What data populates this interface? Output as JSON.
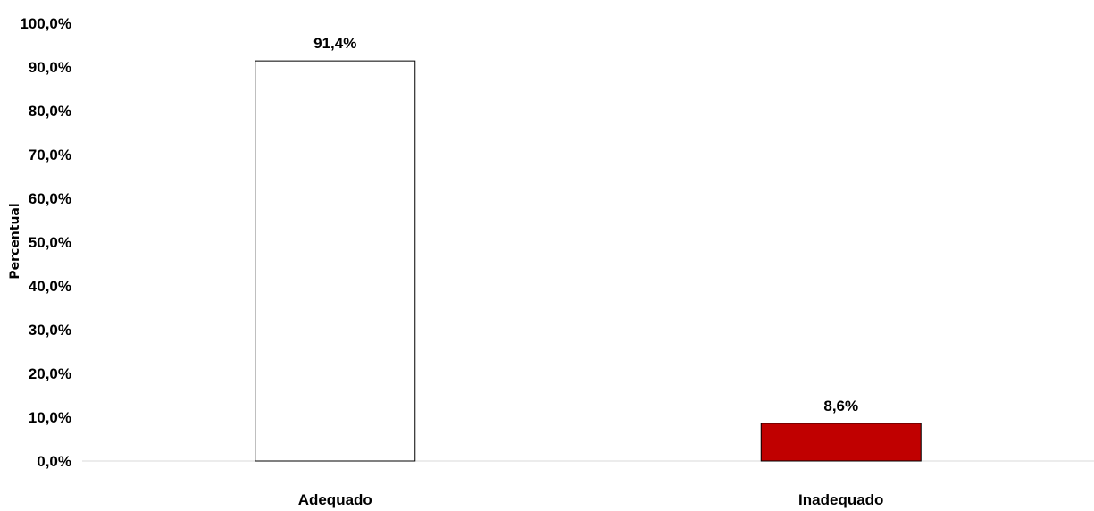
{
  "chart_data": {
    "type": "bar",
    "categories": [
      "Adequado",
      "Inadequado"
    ],
    "values": [
      91.4,
      8.6
    ],
    "value_labels": [
      "91,4%",
      "8,6%"
    ],
    "bar_colors": [
      "#ffffff",
      "#c00000"
    ],
    "bar_border_color": "#000000",
    "title": "",
    "xlabel": "",
    "ylabel": "Percentual",
    "ylim": [
      0,
      100
    ],
    "y_ticks": [
      0,
      10,
      20,
      30,
      40,
      50,
      60,
      70,
      80,
      90,
      100
    ],
    "y_tick_labels": [
      "0,0%",
      "10,0%",
      "20,0%",
      "30,0%",
      "40,0%",
      "50,0%",
      "60,0%",
      "70,0%",
      "80,0%",
      "90,0%",
      "100,0%"
    ],
    "grid": false,
    "legend": false
  }
}
